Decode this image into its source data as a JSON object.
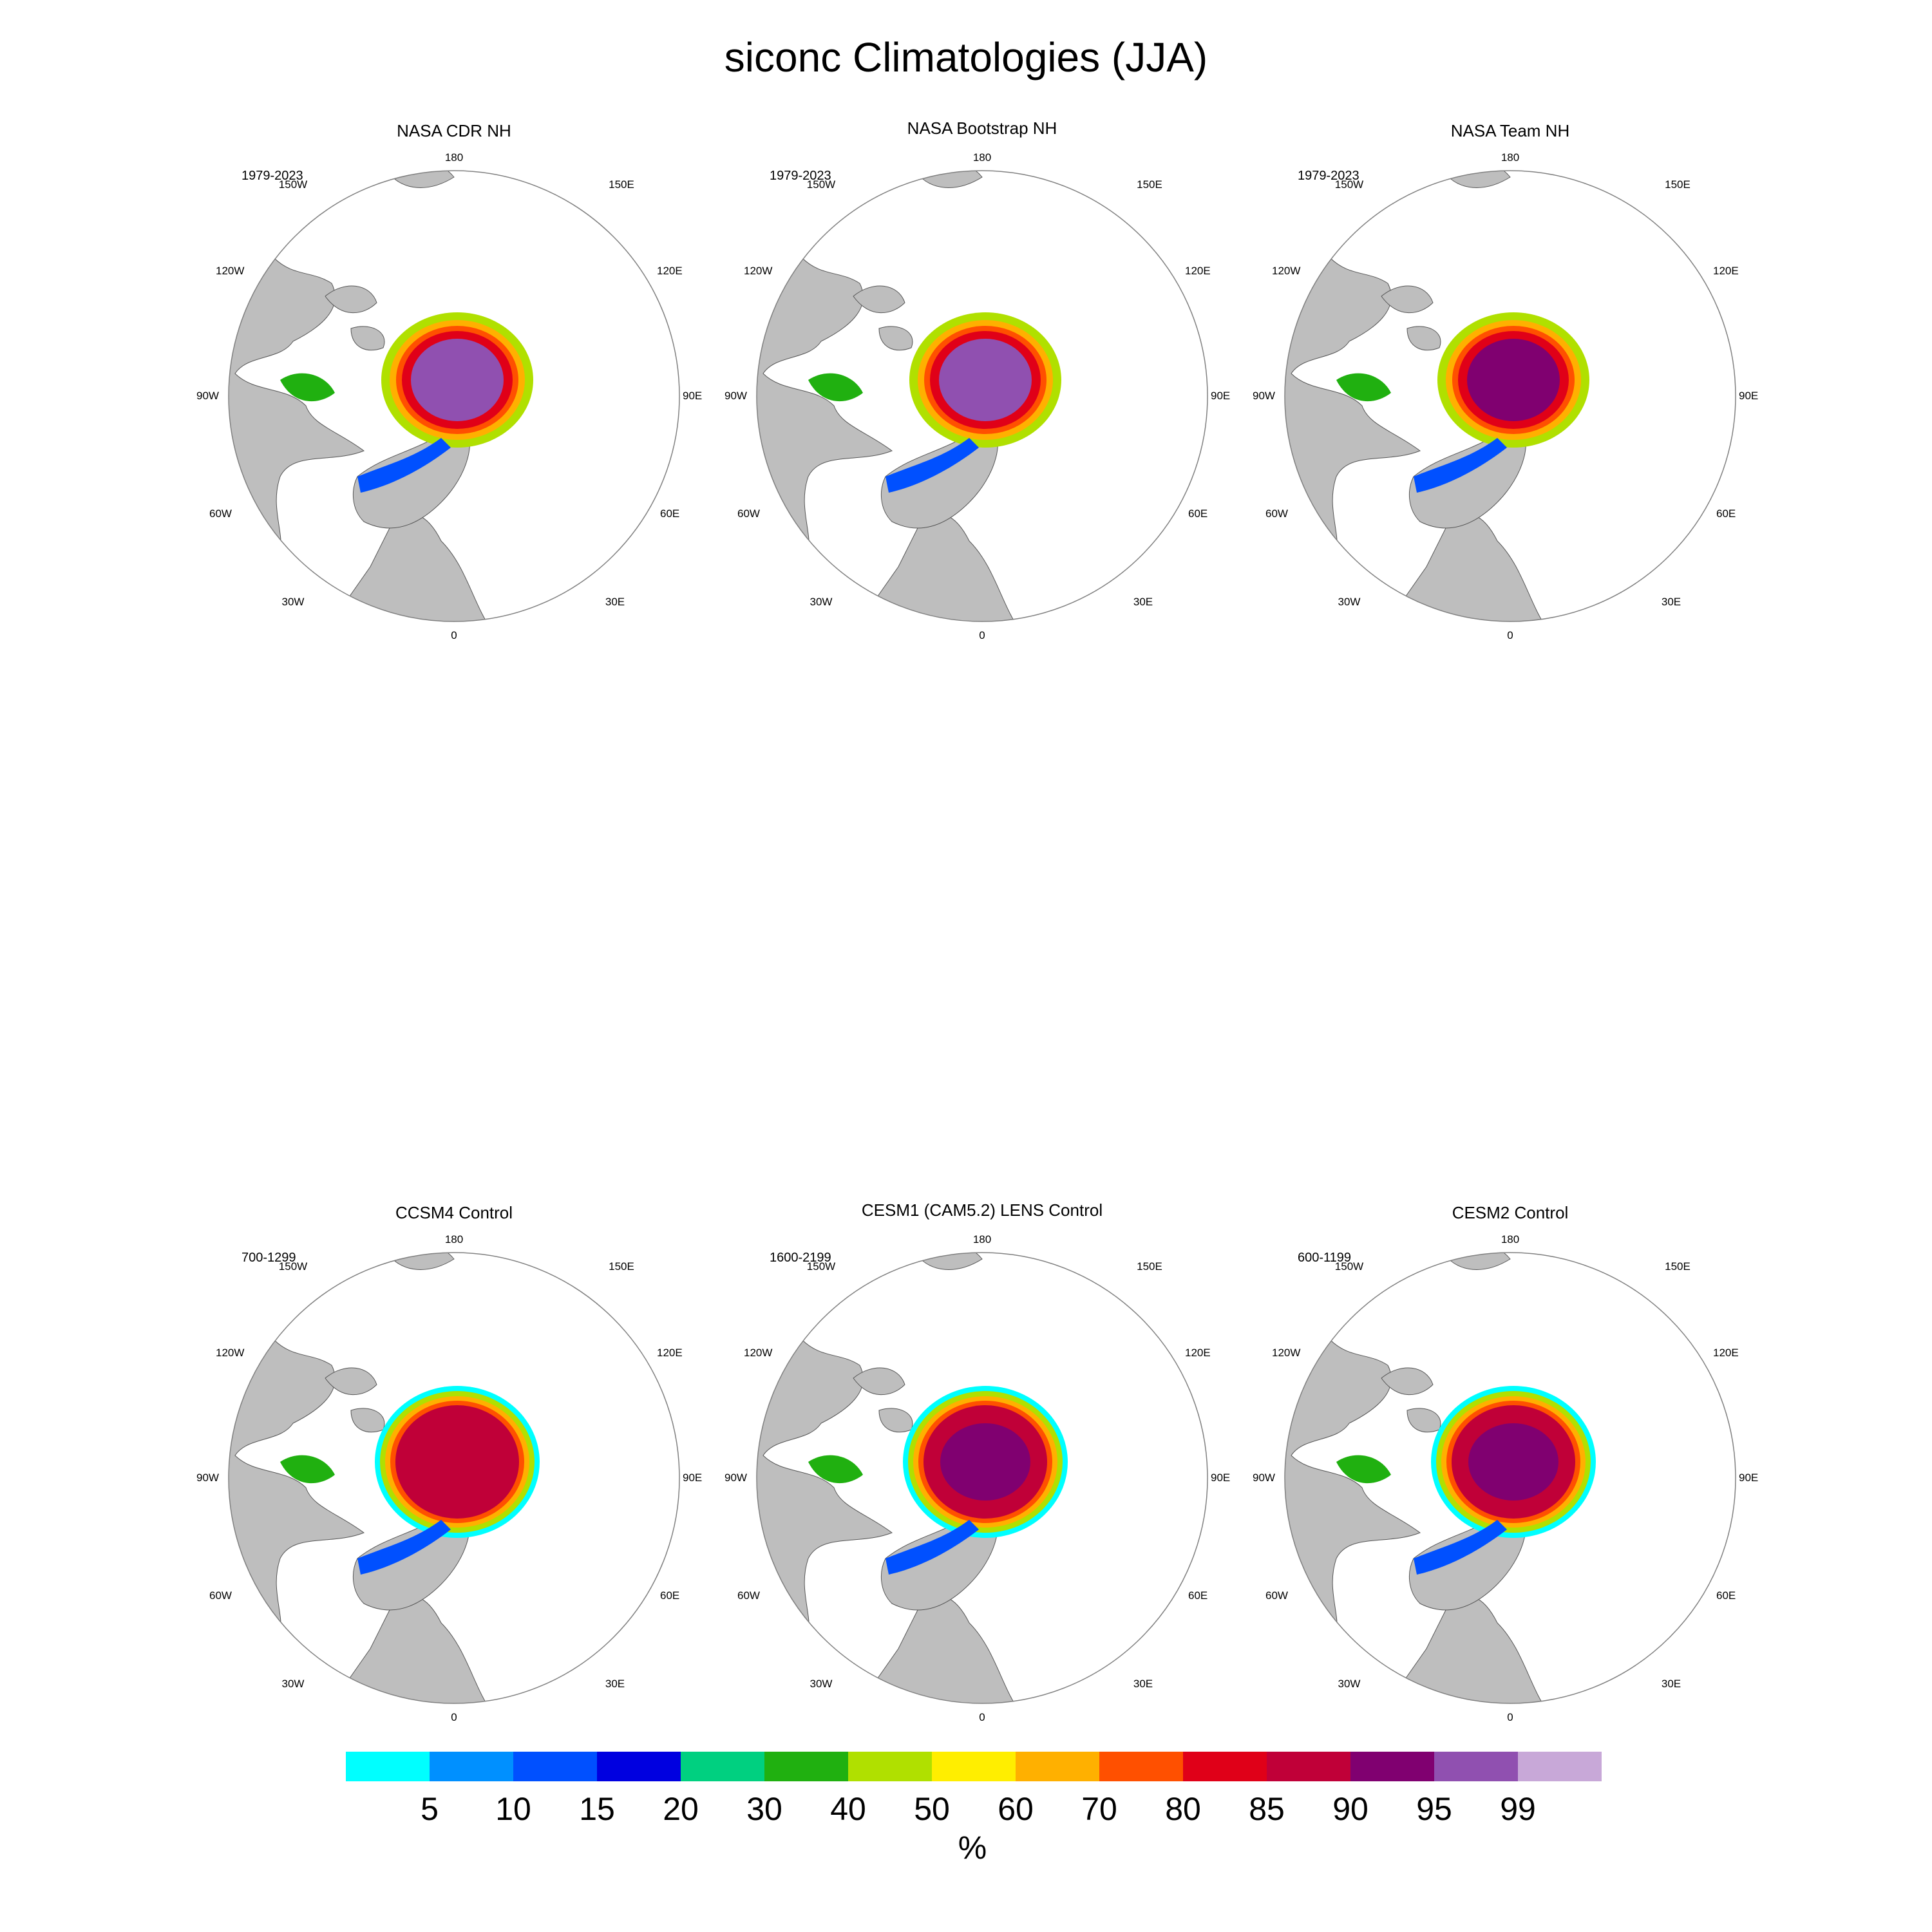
{
  "title": "siconc Climatologies (JJA)",
  "panels": [
    {
      "title": "NASA CDR NH",
      "years": "1979-2023",
      "center_class": "violet",
      "ring": "obs"
    },
    {
      "title": "NASA Bootstrap NH",
      "years": "1979-2023",
      "center_class": "violet",
      "ring": "obs"
    },
    {
      "title": "NASA Team NH",
      "years": "1979-2023",
      "center_class": "purple",
      "ring": "obs"
    },
    {
      "title": "CCSM4 Control",
      "years": "700-1299",
      "center_class": "crimson",
      "ring": "model"
    },
    {
      "title": "CESM1 (CAM5.2) LENS Control",
      "years": "1600-2199",
      "center_class": "purple",
      "ring": "model"
    },
    {
      "title": "CESM2 Control",
      "years": "600-1199",
      "center_class": "purple",
      "ring": "model"
    }
  ],
  "longitude_labels": {
    "top": "180",
    "bottom": "0",
    "w150": "150W",
    "e150": "150E",
    "w120": "120W",
    "e120": "120E",
    "w90": "90W",
    "e90": "90E",
    "w60": "60W",
    "e60": "60E",
    "w30": "30W",
    "e30": "30E"
  },
  "colorbar": {
    "colors": [
      "#00ffff",
      "#0090ff",
      "#0050ff",
      "#0000e0",
      "#00d080",
      "#20b010",
      "#b0e000",
      "#ffee00",
      "#ffb000",
      "#ff5000",
      "#e00018",
      "#c00038",
      "#800070",
      "#9050b0",
      "#c8a8d8"
    ],
    "labels": [
      "5",
      "10",
      "15",
      "20",
      "30",
      "40",
      "50",
      "60",
      "70",
      "80",
      "85",
      "90",
      "95",
      "99"
    ],
    "unit": "%"
  },
  "colors": {
    "land": "#bebebe",
    "ocean": "#ffffff",
    "border": "#808080"
  }
}
